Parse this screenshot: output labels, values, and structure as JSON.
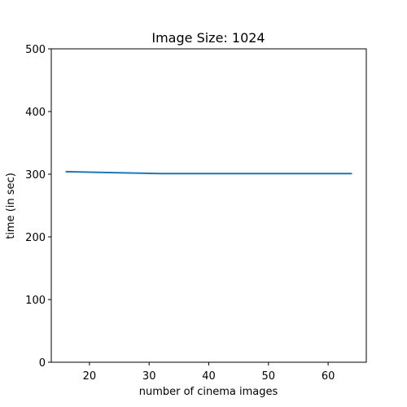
{
  "chart_data": {
    "type": "line",
    "title": "Image Size: 1024",
    "xlabel": "number of cinema images",
    "ylabel": "time (in sec)",
    "xlim": [
      13.6,
      66.4
    ],
    "ylim": [
      0,
      500
    ],
    "xticks": [
      20,
      30,
      40,
      50,
      60
    ],
    "yticks": [
      0,
      100,
      200,
      300,
      400,
      500
    ],
    "grid": false,
    "series": [
      {
        "color": "#1f77b4",
        "x": [
          16,
          32,
          64
        ],
        "y": [
          304,
          301,
          301
        ]
      }
    ]
  }
}
